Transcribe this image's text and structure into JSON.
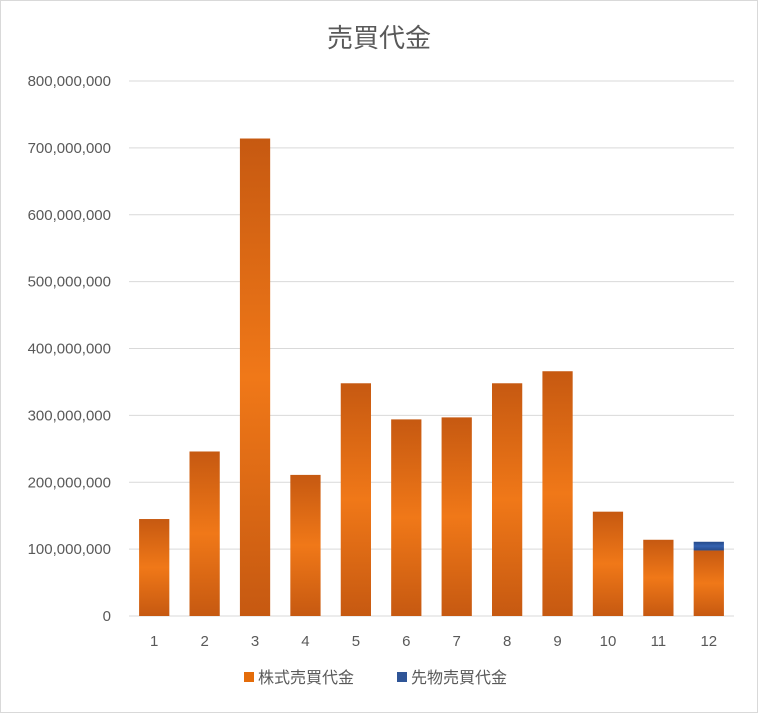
{
  "chart_data": {
    "type": "bar",
    "stacked": true,
    "title": "売買代金",
    "categories": [
      "1",
      "2",
      "3",
      "4",
      "5",
      "6",
      "7",
      "8",
      "9",
      "10",
      "11",
      "12"
    ],
    "series": [
      {
        "name": "株式売買代金",
        "color": "#e46c0a",
        "values": [
          145000000,
          246000000,
          714000000,
          211000000,
          348000000,
          294000000,
          297000000,
          348000000,
          366000000,
          156000000,
          114000000,
          98000000
        ]
      },
      {
        "name": "先物売買代金",
        "color": "#2f5597",
        "values": [
          0,
          0,
          0,
          0,
          0,
          0,
          0,
          0,
          0,
          0,
          0,
          13000000
        ]
      }
    ],
    "ylim": [
      0,
      800000000
    ],
    "yticks": [
      0,
      100000000,
      200000000,
      300000000,
      400000000,
      500000000,
      600000000,
      700000000,
      800000000
    ],
    "ytick_labels": [
      "0",
      "100,000,000",
      "200,000,000",
      "300,000,000",
      "400,000,000",
      "500,000,000",
      "600,000,000",
      "700,000,000",
      "800,000,000"
    ],
    "grid": true,
    "legend_position": "bottom",
    "xlabel": "",
    "ylabel": ""
  }
}
